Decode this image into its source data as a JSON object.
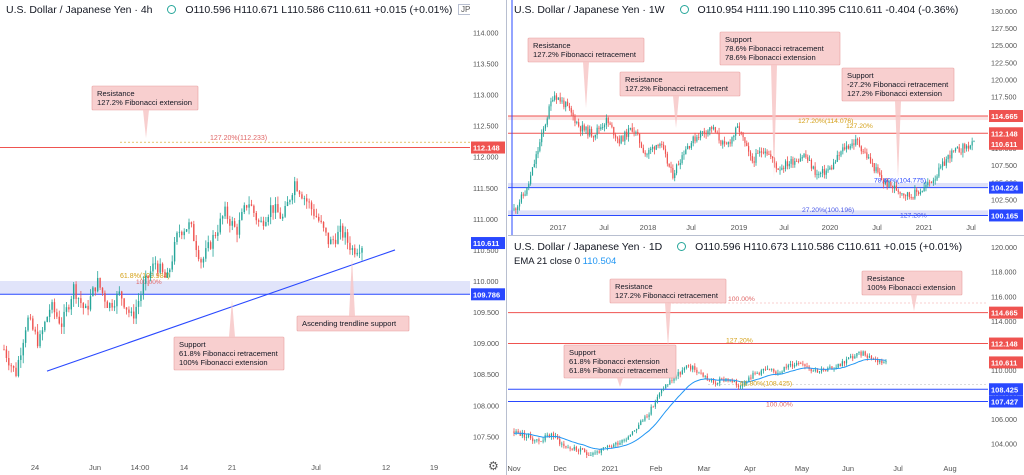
{
  "colors": {
    "up": "#26a69a",
    "down": "#ef5350",
    "resistance": "#ef5350",
    "support": "#2948ff",
    "trend": "#2948ff",
    "ema": "#2196f3",
    "fib": "#d4a017"
  },
  "panel1": {
    "title": "U.S. Dollar / Japanese Yen · 4h",
    "ohlc": "O110.596  H110.671  L110.586  C110.611  +0.015 (+0.01%)",
    "symbol_badge": "JPY",
    "axis_ticks": [
      "114.000",
      "113.500",
      "113.000",
      "112.500",
      "112.000",
      "111.500",
      "111.000",
      "110.500",
      "110.000",
      "109.500",
      "109.000",
      "108.500",
      "108.000",
      "107.500"
    ],
    "x_ticks": [
      "24",
      "Jun",
      "14:00",
      "14",
      "21",
      "Jul",
      "12",
      "19"
    ],
    "price_tags": {
      "resistance": "112.148",
      "last": "110.611",
      "support": "109.786"
    },
    "fib_labels": {
      "ext": "127.20%(112.233)",
      "ret": "61.8%(109.984)",
      "ext100": "100.00%"
    },
    "callouts": {
      "resistance": [
        "Resistance",
        "127.2% Fibonacci extension"
      ],
      "support": [
        "Support",
        "61.8% Fibonacci retracement",
        "100% Fibonacci extension"
      ],
      "trend": [
        "Ascending trendline support"
      ]
    }
  },
  "panel2": {
    "title": "U.S. Dollar / Japanese Yen · 1W",
    "ohlc": "O110.954  H111.190  L110.395  C110.611  -0.404 (-0.36%)",
    "axis_ticks": [
      "130.000",
      "127.500",
      "125.000",
      "122.500",
      "120.000",
      "117.500",
      "115.000",
      "112.500",
      "110.000",
      "107.500",
      "105.000",
      "102.500",
      "100.000"
    ],
    "x_ticks": [
      "2017",
      "Jul",
      "2018",
      "Jul",
      "2019",
      "Jul",
      "2020",
      "Jul",
      "2021",
      "Jul"
    ],
    "price_tags": {
      "r1": "114.665",
      "r2": "112.148",
      "last": "110.611",
      "s1": "104.224",
      "s2": "100.165"
    },
    "fib_labels": {
      "a": "127.20%(114.076)",
      "b": "127.20%",
      "c": "78.60%(104.775)",
      "d": "27.20%(100.196)",
      "e": "127.20%"
    },
    "callouts": {
      "c1": [
        "Resistance",
        "127.2% Fibonacci retracement"
      ],
      "c2": [
        "Resistance",
        "127.2% Fibonacci retracement"
      ],
      "c3": [
        "Support",
        "78.6% Fibonacci retracement",
        "78.6% Fibonacci extension"
      ],
      "c4": [
        "Support",
        "-27.2% Fibonacci retracement",
        "127.2% Fibonacci extension"
      ]
    }
  },
  "panel3": {
    "title": "U.S. Dollar / Japanese Yen · 1D",
    "ohlc": "O110.596  H110.673  L110.586  C110.611  +0.015 (+0.01%)",
    "ema_label": "EMA 21 close 0",
    "ema_value": "110.504",
    "axis_ticks": [
      "120.000",
      "118.000",
      "116.000",
      "114.000",
      "112.000",
      "110.000",
      "108.000",
      "106.000",
      "104.000"
    ],
    "x_ticks": [
      "Nov",
      "Dec",
      "2021",
      "Feb",
      "Mar",
      "Apr",
      "May",
      "Jun",
      "Jul",
      "Aug"
    ],
    "price_tags": {
      "r1": "114.665",
      "r2": "112.148",
      "last": "110.611",
      "s1": "108.425",
      "s2": "107.427"
    },
    "fib_labels": {
      "a": "100.00%",
      "b": "127.20%",
      "c": "61.80%(108.425)",
      "d": "100.00%"
    },
    "callouts": {
      "res1": [
        "Resistance",
        "127.2% Fibonacci retracement"
      ],
      "res2": [
        "Resistance",
        "100% Fibonacci extension"
      ],
      "sup": [
        "Support",
        "61.8% Fibonacci extension",
        "61.8% Fibonacci retracement"
      ]
    }
  },
  "chart_data": [
    {
      "type": "candlestick",
      "title": "U.S. Dollar / Japanese Yen · 4h",
      "ylim": [
        107.2,
        114.2
      ],
      "close_path": [
        108.9,
        108.5,
        109.4,
        109.0,
        109.6,
        109.3,
        109.9,
        109.5,
        110.0,
        109.6,
        109.8,
        109.4,
        109.9,
        110.3,
        110.0,
        110.8,
        110.9,
        110.3,
        110.7,
        111.1,
        110.8,
        111.3,
        110.9,
        111.2,
        111.0,
        111.6,
        111.3,
        111.0,
        110.6,
        110.8,
        110.5,
        110.61
      ]
    },
    {
      "type": "candlestick",
      "title": "U.S. Dollar / Japanese Yen · 1W",
      "ylim": [
        99.5,
        131
      ],
      "close_path": [
        101,
        104,
        111,
        118,
        116,
        113,
        112,
        114,
        111,
        113,
        109,
        111,
        106,
        110,
        112,
        113,
        110,
        113,
        108,
        110,
        107,
        108,
        109,
        106,
        107,
        110,
        111,
        108,
        105,
        104,
        103,
        104,
        106,
        109,
        110,
        110.61
      ]
    },
    {
      "type": "candlestick",
      "title": "U.S. Dollar / Japanese Yen · 1D",
      "ylim": [
        102.5,
        120.5
      ],
      "close_path": [
        105,
        104.6,
        104.2,
        104.8,
        103.8,
        103.5,
        103.2,
        103.4,
        103.9,
        104.5,
        105.5,
        106.8,
        108.6,
        109.5,
        110.3,
        109.7,
        108.9,
        109.3,
        108.7,
        109.5,
        110.0,
        109.8,
        110.3,
        110.7,
        110.0,
        109.9,
        110.4,
        111.0,
        111.4,
        110.8,
        110.61
      ]
    }
  ]
}
